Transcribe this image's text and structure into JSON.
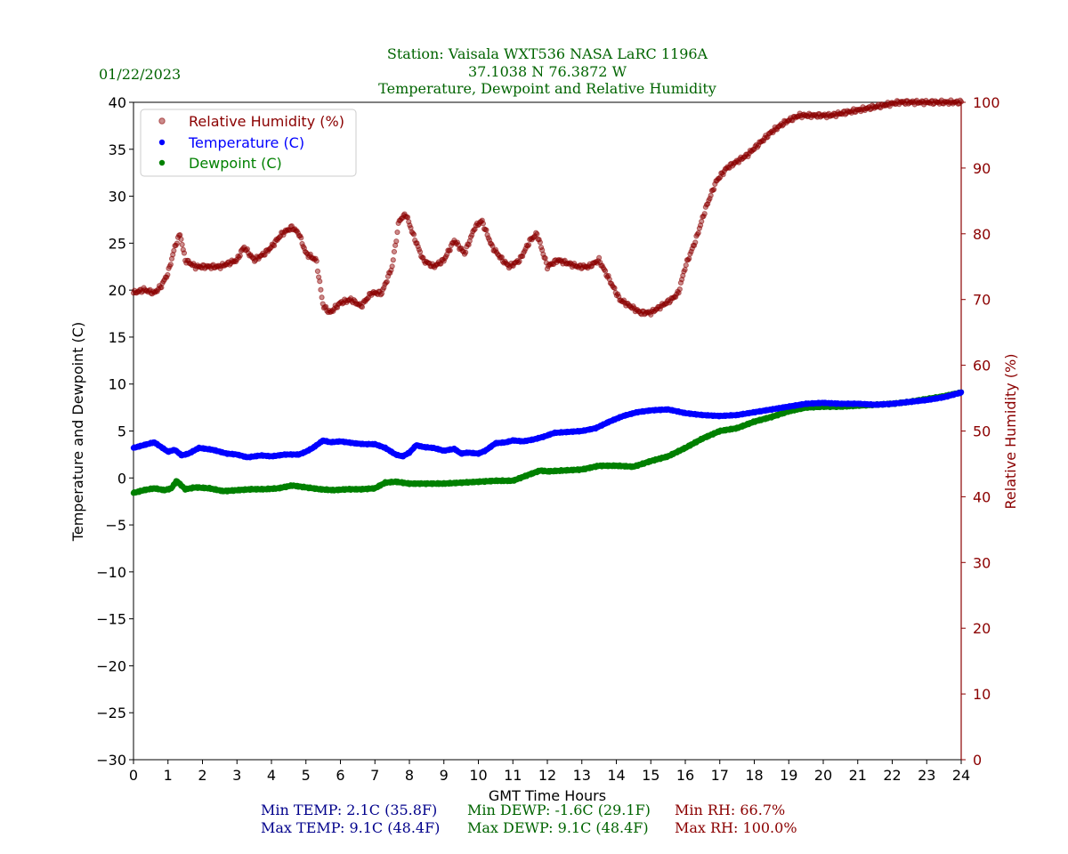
{
  "header": {
    "date": "01/22/2023",
    "station_line": "Station:  Vaisala WXT536  NASA LaRC 1196A",
    "coords_line": "37.1038 N 76.3872 W",
    "subtitle": "Temperature, Dewpoint and Relative Humidity"
  },
  "stats": {
    "min_temp": "Min TEMP: 2.1C (35.8F)",
    "max_temp": "Max TEMP: 9.1C (48.4F)",
    "min_dewp": "Min DEWP: -1.6C (29.1F)",
    "max_dewp": "Max DEWP: 9.1C (48.4F)",
    "min_rh": "Min RH: 66.7%",
    "max_rh": "Max RH: 100.0%"
  },
  "colors": {
    "temperature": "#0000ff",
    "dewpoint": "#008000",
    "humidity": "#8b0000",
    "title": "#006400",
    "stats_temp": "#00008b"
  },
  "chart_data": {
    "type": "scatter",
    "title": "Temperature, Dewpoint and Relative Humidity",
    "xlabel": "GMT Time Hours",
    "ylabel": "Temperature and Dewpoint (C)",
    "y2label": "Relative Humidity (%)",
    "xlim": [
      0,
      24
    ],
    "ylim": [
      -30,
      40
    ],
    "y2lim": [
      0,
      100
    ],
    "x_ticks": [
      0,
      1,
      2,
      3,
      4,
      5,
      6,
      7,
      8,
      9,
      10,
      11,
      12,
      13,
      14,
      15,
      16,
      17,
      18,
      19,
      20,
      21,
      22,
      23,
      24
    ],
    "y_ticks": [
      -30,
      -25,
      -20,
      -15,
      -10,
      -5,
      0,
      5,
      10,
      15,
      20,
      25,
      30,
      35,
      40
    ],
    "y2_ticks": [
      0,
      10,
      20,
      30,
      40,
      50,
      60,
      70,
      80,
      90,
      100
    ],
    "legend": [
      "Relative Humidity (%)",
      "Temperature (C)",
      "Dewpoint (C)"
    ],
    "legend_position": "top-left",
    "series": [
      {
        "name": "Relative Humidity (%)",
        "axis": "right",
        "x": [
          0,
          0.3,
          0.6,
          0.8,
          1,
          1.2,
          1.35,
          1.5,
          1.8,
          2.1,
          2.5,
          3,
          3.2,
          3.5,
          3.8,
          4,
          4.3,
          4.6,
          4.8,
          5,
          5.3,
          5.5,
          5.7,
          6,
          6.3,
          6.6,
          6.9,
          7.2,
          7.5,
          7.7,
          7.9,
          8.1,
          8.4,
          8.7,
          9,
          9.3,
          9.6,
          9.9,
          10.1,
          10.4,
          10.7,
          10.9,
          11.2,
          11.5,
          11.7,
          12,
          12.3,
          12.6,
          12.9,
          13.2,
          13.5,
          13.8,
          14.1,
          14.4,
          14.7,
          15,
          15.3,
          15.6,
          15.8,
          16,
          16.3,
          16.6,
          16.9,
          17.2,
          17.5,
          17.8,
          18.2,
          18.5,
          18.9,
          19.3,
          19.7,
          20.2,
          20.7,
          21.2,
          21.7,
          22.2,
          22.6,
          23,
          23.5,
          24
        ],
        "values": [
          71,
          71.5,
          71,
          72,
          74,
          78,
          80,
          76,
          75,
          75,
          75,
          76,
          78,
          76,
          77,
          78,
          80,
          81,
          80,
          77,
          76,
          69,
          68,
          69.5,
          70,
          69,
          71,
          71,
          75,
          82,
          83,
          80,
          76,
          75,
          76,
          79,
          77,
          81,
          82,
          78,
          76,
          75,
          76,
          79,
          80,
          75,
          76,
          75.5,
          75,
          75,
          76,
          73,
          70,
          69,
          68,
          68,
          69,
          70,
          71,
          75,
          79,
          84,
          88,
          90,
          91,
          92,
          94,
          95.5,
          97,
          98,
          98,
          98,
          98.5,
          99,
          99.5,
          100,
          100,
          100,
          100,
          100
        ],
        "min": 66.7,
        "max": 100.0
      },
      {
        "name": "Temperature (C)",
        "axis": "left",
        "x": [
          0,
          0.3,
          0.6,
          0.8,
          1,
          1.2,
          1.4,
          1.6,
          1.9,
          2.3,
          2.7,
          3,
          3.3,
          3.7,
          4,
          4.4,
          4.8,
          5,
          5.2,
          5.5,
          5.7,
          6,
          6.4,
          6.7,
          7,
          7.3,
          7.6,
          7.8,
          8,
          8.2,
          8.4,
          8.7,
          9,
          9.3,
          9.5,
          9.7,
          10,
          10.2,
          10.5,
          10.8,
          11,
          11.3,
          11.6,
          11.9,
          12.2,
          12.6,
          13,
          13.4,
          13.8,
          14.2,
          14.6,
          15,
          15.5,
          16,
          16.5,
          17,
          17.5,
          18,
          18.5,
          19,
          19.5,
          20,
          20.5,
          21,
          21.5,
          22,
          22.5,
          23,
          23.5,
          24
        ],
        "values": [
          3.2,
          3.5,
          3.8,
          3.3,
          2.8,
          3,
          2.4,
          2.6,
          3.2,
          3,
          2.6,
          2.5,
          2.2,
          2.4,
          2.3,
          2.5,
          2.5,
          2.8,
          3.2,
          4,
          3.8,
          3.9,
          3.7,
          3.6,
          3.6,
          3.2,
          2.5,
          2.3,
          2.7,
          3.5,
          3.3,
          3.2,
          2.9,
          3.1,
          2.6,
          2.7,
          2.6,
          2.9,
          3.7,
          3.8,
          4,
          3.9,
          4.1,
          4.4,
          4.8,
          4.9,
          5,
          5.3,
          6,
          6.6,
          7,
          7.2,
          7.3,
          6.9,
          6.7,
          6.6,
          6.7,
          7,
          7.3,
          7.6,
          7.9,
          8,
          7.9,
          7.9,
          7.8,
          7.9,
          8.1,
          8.3,
          8.6,
          9.1
        ],
        "min": 2.1,
        "max": 9.1
      },
      {
        "name": "Dewpoint (C)",
        "axis": "left",
        "x": [
          0,
          0.3,
          0.6,
          0.9,
          1.1,
          1.25,
          1.5,
          1.8,
          2.2,
          2.6,
          3,
          3.4,
          3.8,
          4.2,
          4.6,
          5,
          5.4,
          5.8,
          6.2,
          6.6,
          7,
          7.3,
          7.6,
          8,
          8.5,
          9,
          9.5,
          10,
          10.5,
          11,
          11.5,
          11.8,
          12,
          12.5,
          13,
          13.5,
          14,
          14.5,
          15,
          15.5,
          16,
          16.5,
          17,
          17.5,
          18,
          18.5,
          19,
          19.5,
          20,
          20.5,
          21,
          21.5,
          22,
          22.5,
          23,
          23.5,
          24
        ],
        "values": [
          -1.6,
          -1.3,
          -1.1,
          -1.3,
          -1.1,
          -0.3,
          -1.2,
          -1,
          -1.1,
          -1.4,
          -1.3,
          -1.2,
          -1.2,
          -1.1,
          -0.8,
          -1,
          -1.2,
          -1.3,
          -1.2,
          -1.2,
          -1.1,
          -0.5,
          -0.4,
          -0.6,
          -0.6,
          -0.6,
          -0.5,
          -0.4,
          -0.3,
          -0.3,
          0.4,
          0.8,
          0.7,
          0.8,
          0.9,
          1.3,
          1.3,
          1.2,
          1.8,
          2.3,
          3.2,
          4.2,
          5,
          5.3,
          6,
          6.5,
          7.1,
          7.5,
          7.6,
          7.6,
          7.7,
          7.8,
          7.9,
          8.1,
          8.4,
          8.7,
          9.1
        ],
        "min": -1.6,
        "max": 9.1
      }
    ]
  }
}
